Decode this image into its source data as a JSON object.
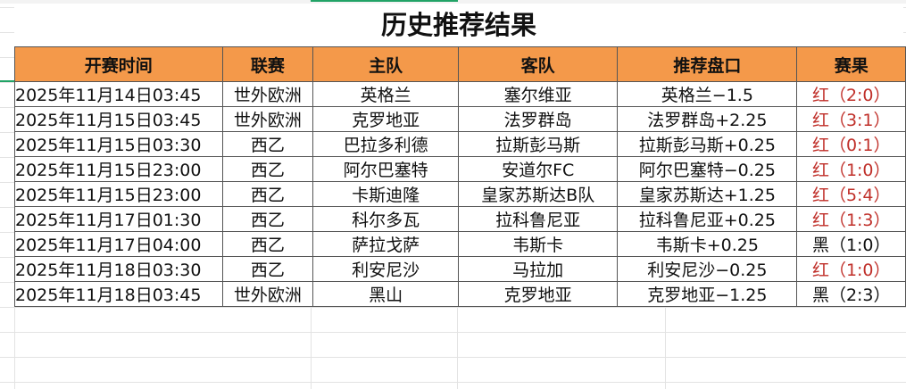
{
  "title": "历史推荐结果",
  "headers": [
    "开赛时间",
    "联赛",
    "主队",
    "客队",
    "推荐盘口",
    "赛果"
  ],
  "colors": {
    "header_bg": "#f4994a",
    "win": "#c0302a",
    "loss": "#111111"
  },
  "rows": [
    [
      "2025年11月14日03:45",
      "世外欧洲",
      "英格兰",
      "塞尔维亚",
      "英格兰−1.5",
      "红（2:0）"
    ],
    [
      "2025年11月15日03:45",
      "世外欧洲",
      "克罗地亚",
      "法罗群岛",
      "法罗群岛+2.25",
      "红（3:1）"
    ],
    [
      "2025年11月15日03:30",
      "西乙",
      "巴拉多利德",
      "拉斯彭马斯",
      "拉斯彭马斯+0.25",
      "红（0:1）"
    ],
    [
      "2025年11月15日23:00",
      "西乙",
      "阿尔巴塞特",
      "安道尔FC",
      "阿尔巴塞特−0.25",
      "红（1:0）"
    ],
    [
      "2025年11月15日23:00",
      "西乙",
      "卡斯迪隆",
      "皇家苏斯达B队",
      "皇家苏斯达+1.25",
      "红（5:4）"
    ],
    [
      "2025年11月17日01:30",
      "西乙",
      "科尔多瓦",
      "拉科鲁尼亚",
      "拉科鲁尼亚+0.25",
      "红（1:3）"
    ],
    [
      "2025年11月17日04:00",
      "西乙",
      "萨拉戈萨",
      "韦斯卡",
      "韦斯卡+0.25",
      "黑（1:0）"
    ],
    [
      "2025年11月18日03:30",
      "西乙",
      "利安尼沙",
      "马拉加",
      "利安尼沙−0.25",
      "红（1:0）"
    ],
    [
      "2025年11月18日03:45",
      "世外欧洲",
      "黑山",
      "克罗地亚",
      "克罗地亚−1.25",
      "黑（2:3）"
    ]
  ]
}
